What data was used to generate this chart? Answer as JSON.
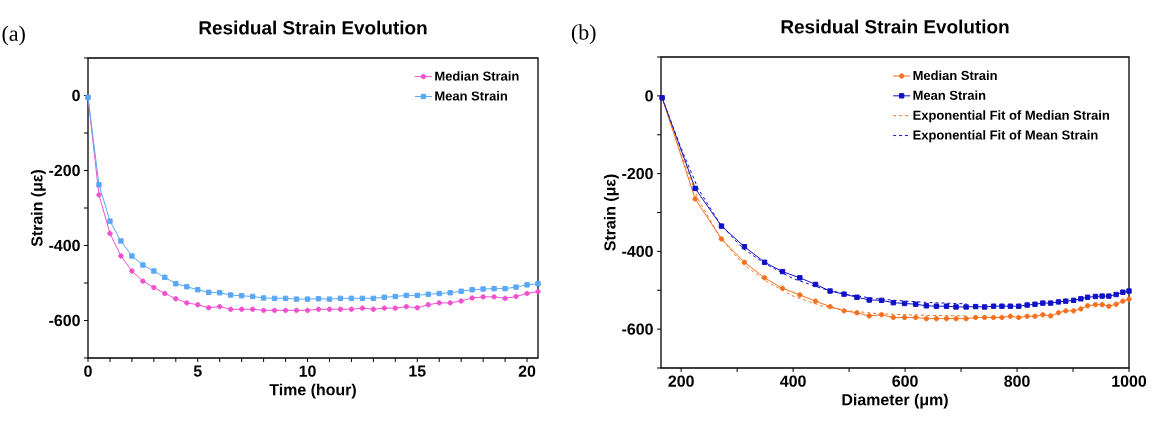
{
  "chart_data": [
    {
      "type": "line",
      "title": "Residual Strain Evolution",
      "xlabel": "Time (hour)",
      "ylabel": "Strain (με)",
      "annotations": [
        "(a)"
      ],
      "x": [
        0,
        0.5,
        1,
        1.5,
        2,
        2.5,
        3,
        3.5,
        4,
        4.5,
        5,
        5.5,
        6,
        6.5,
        7,
        7.5,
        8,
        8.5,
        9,
        9.5,
        10,
        10.5,
        11,
        11.5,
        12,
        12.5,
        13,
        13.5,
        14,
        14.5,
        15,
        15.5,
        16,
        16.5,
        17,
        17.5,
        18,
        18.5,
        19,
        19.5,
        20,
        20.5
      ],
      "series": [
        {
          "name": "Median Strain",
          "color": "#f050d0",
          "marker": "circle",
          "values": [
            -5,
            -265,
            -368,
            -428,
            -468,
            -495,
            -512,
            -528,
            -542,
            -553,
            -558,
            -566,
            -563,
            -570,
            -570,
            -570,
            -573,
            -573,
            -573,
            -573,
            -573,
            -570,
            -570,
            -570,
            -570,
            -567,
            -570,
            -567,
            -567,
            -563,
            -566,
            -558,
            -553,
            -553,
            -548,
            -540,
            -537,
            -537,
            -541,
            -536,
            -528,
            -523
          ]
        },
        {
          "name": "Mean Strain",
          "color": "#5aa8f5",
          "marker": "square",
          "values": [
            -5,
            -238,
            -335,
            -388,
            -428,
            -452,
            -468,
            -485,
            -502,
            -510,
            -518,
            -525,
            -526,
            -532,
            -534,
            -536,
            -540,
            -541,
            -541,
            -543,
            -543,
            -542,
            -543,
            -541,
            -541,
            -541,
            -541,
            -538,
            -536,
            -533,
            -533,
            -530,
            -528,
            -526,
            -522,
            -518,
            -516,
            -515,
            -515,
            -511,
            -505,
            -502
          ]
        }
      ],
      "xlim": [
        0,
        20.5
      ],
      "ylim": [
        -700,
        100
      ],
      "xticks": [
        0,
        {
          "value": 1,
          "label": null
        },
        {
          "value": 2,
          "label": null
        },
        {
          "value": 3,
          "label": null
        },
        {
          "value": 4,
          "label": null
        },
        5,
        {
          "value": 6,
          "label": null
        },
        {
          "value": 7,
          "label": null
        },
        {
          "value": 8,
          "label": null
        },
        {
          "value": 9,
          "label": null
        },
        10,
        {
          "value": 11,
          "label": null
        },
        {
          "value": 12,
          "label": null
        },
        {
          "value": 13,
          "label": null
        },
        {
          "value": 14,
          "label": null
        },
        15,
        {
          "value": 16,
          "label": null
        },
        {
          "value": 17,
          "label": null
        },
        {
          "value": 18,
          "label": null
        },
        {
          "value": 19,
          "label": null
        },
        20
      ],
      "yticks": [
        {
          "value": -700,
          "label": null
        },
        -600,
        {
          "value": -500,
          "label": null
        },
        -400,
        {
          "value": -300,
          "label": null
        },
        -200,
        {
          "value": -100,
          "label": null
        },
        0,
        {
          "value": 100,
          "label": null
        }
      ],
      "legend": "top right",
      "grid": false,
      "line_style": "solid"
    },
    {
      "type": "line",
      "title": "Residual Strain Evolution",
      "xlabel": "Diameter (μm)",
      "ylabel": "Strain (με)",
      "annotations": [
        "(b)"
      ],
      "x": [
        166,
        225,
        272,
        313,
        349,
        381,
        412,
        440,
        466,
        491,
        514,
        536,
        558,
        579,
        599,
        619,
        638,
        656,
        674,
        691,
        709,
        726,
        742,
        758,
        773,
        788,
        803,
        818,
        832,
        846,
        860,
        874,
        887,
        901,
        914,
        926,
        940,
        952,
        964,
        977,
        989,
        1000
      ],
      "series": [
        {
          "name": "Median Strain",
          "color": "#f5701e",
          "marker": "circle",
          "line_style": "solid",
          "values": [
            -5,
            -265,
            -368,
            -428,
            -468,
            -495,
            -512,
            -528,
            -542,
            -553,
            -558,
            -566,
            -563,
            -570,
            -570,
            -570,
            -573,
            -573,
            -573,
            -573,
            -573,
            -570,
            -570,
            -570,
            -570,
            -567,
            -570,
            -567,
            -567,
            -563,
            -566,
            -558,
            -553,
            -553,
            -548,
            -540,
            -537,
            -537,
            -541,
            -536,
            -528,
            -523
          ]
        },
        {
          "name": "Mean Strain",
          "color": "#1010c8",
          "marker": "square",
          "line_style": "solid",
          "values": [
            -5,
            -238,
            -335,
            -388,
            -428,
            -452,
            -468,
            -485,
            -502,
            -510,
            -518,
            -525,
            -526,
            -532,
            -534,
            -536,
            -540,
            -541,
            -541,
            -543,
            -543,
            -542,
            -543,
            -541,
            -541,
            -541,
            -541,
            -538,
            -536,
            -533,
            -533,
            -530,
            -528,
            -526,
            -522,
            -518,
            -516,
            -515,
            -515,
            -511,
            -505,
            -502
          ]
        },
        {
          "name": "Exponential Fit of Median Strain",
          "color": "#f5701e",
          "marker": "none",
          "line_style": "dashed",
          "x": [
            166,
            200,
            230,
            270,
            310,
            350,
            400,
            450,
            500,
            550,
            600,
            650,
            710
          ],
          "values": [
            -5,
            -150,
            -265,
            -365,
            -432,
            -475,
            -515,
            -540,
            -553,
            -560,
            -563,
            -565,
            -566
          ]
        },
        {
          "name": "Exponential Fit of Mean Strain",
          "color": "#1010c8",
          "marker": "none",
          "line_style": "dashed",
          "x": [
            166,
            200,
            230,
            270,
            310,
            350,
            400,
            450,
            500,
            550,
            600,
            650,
            710
          ],
          "values": [
            -5,
            -135,
            -238,
            -330,
            -392,
            -432,
            -470,
            -495,
            -512,
            -522,
            -528,
            -532,
            -535
          ]
        }
      ],
      "xlim": [
        164,
        1000
      ],
      "ylim": [
        -700,
        100
      ],
      "xticks": [
        200,
        {
          "value": 300,
          "label": null
        },
        400,
        {
          "value": 500,
          "label": null
        },
        600,
        {
          "value": 700,
          "label": null
        },
        800,
        {
          "value": 900,
          "label": null
        },
        1000
      ],
      "yticks": [
        {
          "value": -700,
          "label": null
        },
        -600,
        {
          "value": -500,
          "label": null
        },
        -400,
        {
          "value": -300,
          "label": null
        },
        -200,
        {
          "value": -100,
          "label": null
        },
        0,
        {
          "value": 100,
          "label": null
        }
      ],
      "legend": "top right",
      "grid": false
    }
  ]
}
